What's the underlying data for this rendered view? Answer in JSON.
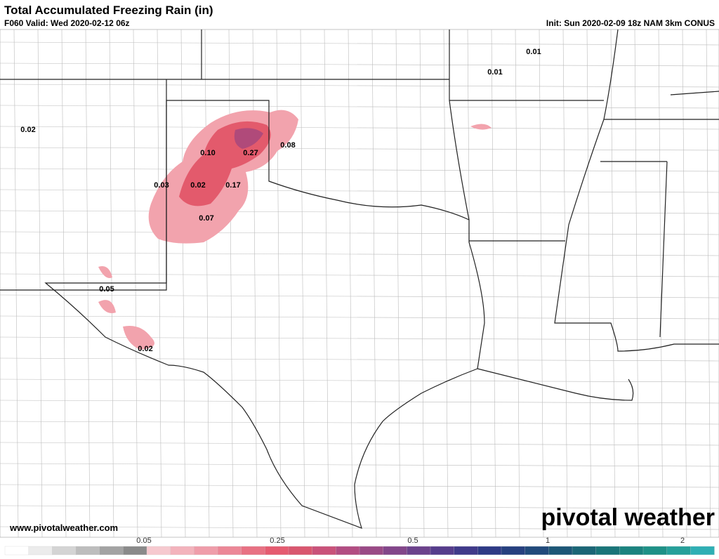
{
  "header": {
    "title": "Total Accumulated Freezing Rain (in)",
    "valid": "F060 Valid: Wed 2020-02-12 06z",
    "init": "Init: Sun 2020-02-09 18z NAM 3km CONUS"
  },
  "map_labels": [
    "0.01",
    "0.01",
    "0.02",
    "0.10",
    "0.27",
    "0.08",
    "0.03",
    "0.02",
    "0.17",
    "0.07",
    "0.05",
    "0.02"
  ],
  "footer": {
    "website": "www.pivotalweather.com",
    "logo": "pivotal weather"
  },
  "colorbar_labels": [
    "0.05",
    "0.25",
    "0.5",
    "1",
    "2"
  ]
}
